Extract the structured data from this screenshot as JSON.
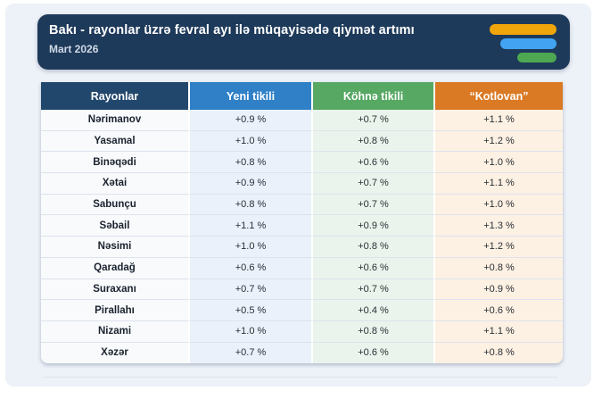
{
  "page": {
    "panel_bg": "#EDF1F8",
    "outer_bg": "#FFFFFF"
  },
  "header": {
    "title": "Bakı - rayonlar üzrə fevral ayı ilə müqayisədə qiymət artımı",
    "subtitle": "Mart 2026",
    "bg": "#1E3A5A",
    "logo_colors": [
      "#F0A60B",
      "#41A3F2",
      "#4EA852"
    ]
  },
  "table": {
    "row_keys": [
      "rayon",
      "yeni",
      "kohne",
      "kotlovan"
    ],
    "columns": [
      {
        "label": "Rayonlar",
        "header_bg": "#22476D",
        "cell_bg": "#F8FAFC"
      },
      {
        "label": "Yeni tikili",
        "header_bg": "#2F80C7",
        "cell_bg": "#EAF1FA"
      },
      {
        "label": "Köhnə tikili",
        "header_bg": "#56A863",
        "cell_bg": "#EBF4EC"
      },
      {
        "label": "“Kotlovan”",
        "header_bg": "#DA7A24",
        "cell_bg": "#FDF1E3"
      }
    ],
    "rows": [
      {
        "rayon": "Nərimanov",
        "yeni": "+0.9 %",
        "kohne": "+0.7 %",
        "kotlovan": "+1.1 %"
      },
      {
        "rayon": "Yasamal",
        "yeni": "+1.0 %",
        "kohne": "+0.8 %",
        "kotlovan": "+1.2 %"
      },
      {
        "rayon": "Binəqədi",
        "yeni": "+0.8 %",
        "kohne": "+0.6 %",
        "kotlovan": "+1.0 %"
      },
      {
        "rayon": "Xətai",
        "yeni": "+0.9 %",
        "kohne": "+0.7 %",
        "kotlovan": "+1.1 %"
      },
      {
        "rayon": "Sabunçu",
        "yeni": "+0.8 %",
        "kohne": "+0.7 %",
        "kotlovan": "+1.0 %"
      },
      {
        "rayon": "Səbail",
        "yeni": "+1.1 %",
        "kohne": "+0.9 %",
        "kotlovan": "+1.3 %"
      },
      {
        "rayon": "Nəsimi",
        "yeni": "+1.0 %",
        "kohne": "+0.8 %",
        "kotlovan": "+1.2 %"
      },
      {
        "rayon": "Qaradağ",
        "yeni": "+0.6 %",
        "kohne": "+0.6 %",
        "kotlovan": "+0.8 %"
      },
      {
        "rayon": "Suraxanı",
        "yeni": "+0.7 %",
        "kohne": "+0.7 %",
        "kotlovan": "+0.9 %"
      },
      {
        "rayon": "Pirallahı",
        "yeni": "+0.5 %",
        "kohne": "+0.4 %",
        "kotlovan": "+0.6 %"
      },
      {
        "rayon": "Nizami",
        "yeni": "+1.0 %",
        "kohne": "+0.8 %",
        "kotlovan": "+1.1 %"
      },
      {
        "rayon": "Xəzər",
        "yeni": "+0.7 %",
        "kohne": "+0.6 %",
        "kotlovan": "+0.8 %"
      }
    ]
  },
  "chart_data": {
    "type": "table",
    "title": "Bakı - rayonlar üzrə fevral ayı ilə müqayisədə qiymət artımı",
    "subtitle": "Mart 2026",
    "unit": "%",
    "categories": [
      "Nərimanov",
      "Yasamal",
      "Binəqədi",
      "Xətai",
      "Sabunçu",
      "Səbail",
      "Nəsimi",
      "Qaradağ",
      "Suraxanı",
      "Pirallahı",
      "Nizami",
      "Xəzər"
    ],
    "series": [
      {
        "name": "Yeni tikili",
        "values": [
          0.9,
          1.0,
          0.8,
          0.9,
          0.8,
          1.1,
          1.0,
          0.6,
          0.7,
          0.5,
          1.0,
          0.7
        ]
      },
      {
        "name": "Köhnə tikili",
        "values": [
          0.7,
          0.8,
          0.6,
          0.7,
          0.7,
          0.9,
          0.8,
          0.6,
          0.7,
          0.4,
          0.8,
          0.6
        ]
      },
      {
        "name": "“Kotlovan”",
        "values": [
          1.1,
          1.2,
          1.0,
          1.1,
          1.0,
          1.3,
          1.2,
          0.8,
          0.9,
          0.6,
          1.1,
          0.8
        ]
      }
    ]
  }
}
